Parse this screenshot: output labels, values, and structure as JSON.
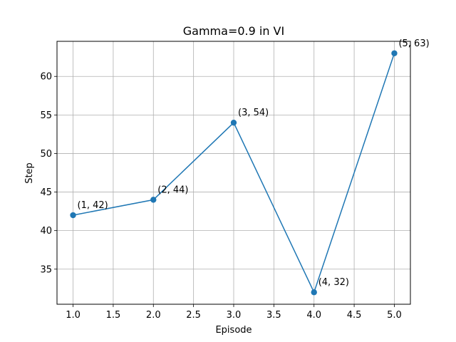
{
  "chart_data": {
    "type": "line",
    "title": "Gamma=0.9 in VI",
    "xlabel": "Episode",
    "ylabel": "Step",
    "x": [
      1,
      2,
      3,
      4,
      5
    ],
    "series": [
      {
        "values": [
          42,
          44,
          54,
          32,
          63
        ],
        "color": "#1f77b4",
        "marker": "circle"
      }
    ],
    "annotations": [
      "(1, 42)",
      "(2, 44)",
      "(3, 54)",
      "(4, 32)",
      "(5, 63)"
    ],
    "xlim": [
      0.8,
      5.2
    ],
    "ylim": [
      30.45,
      64.55
    ],
    "xticks": [
      1.0,
      1.5,
      2.0,
      2.5,
      3.0,
      3.5,
      4.0,
      4.5,
      5.0
    ],
    "xtick_labels": [
      "1.0",
      "1.5",
      "2.0",
      "2.5",
      "3.0",
      "3.5",
      "4.0",
      "4.5",
      "5.0"
    ],
    "yticks": [
      35,
      40,
      45,
      50,
      55,
      60
    ],
    "ytick_labels": [
      "35",
      "40",
      "45",
      "50",
      "55",
      "60"
    ],
    "grid": true,
    "legend": "none"
  }
}
